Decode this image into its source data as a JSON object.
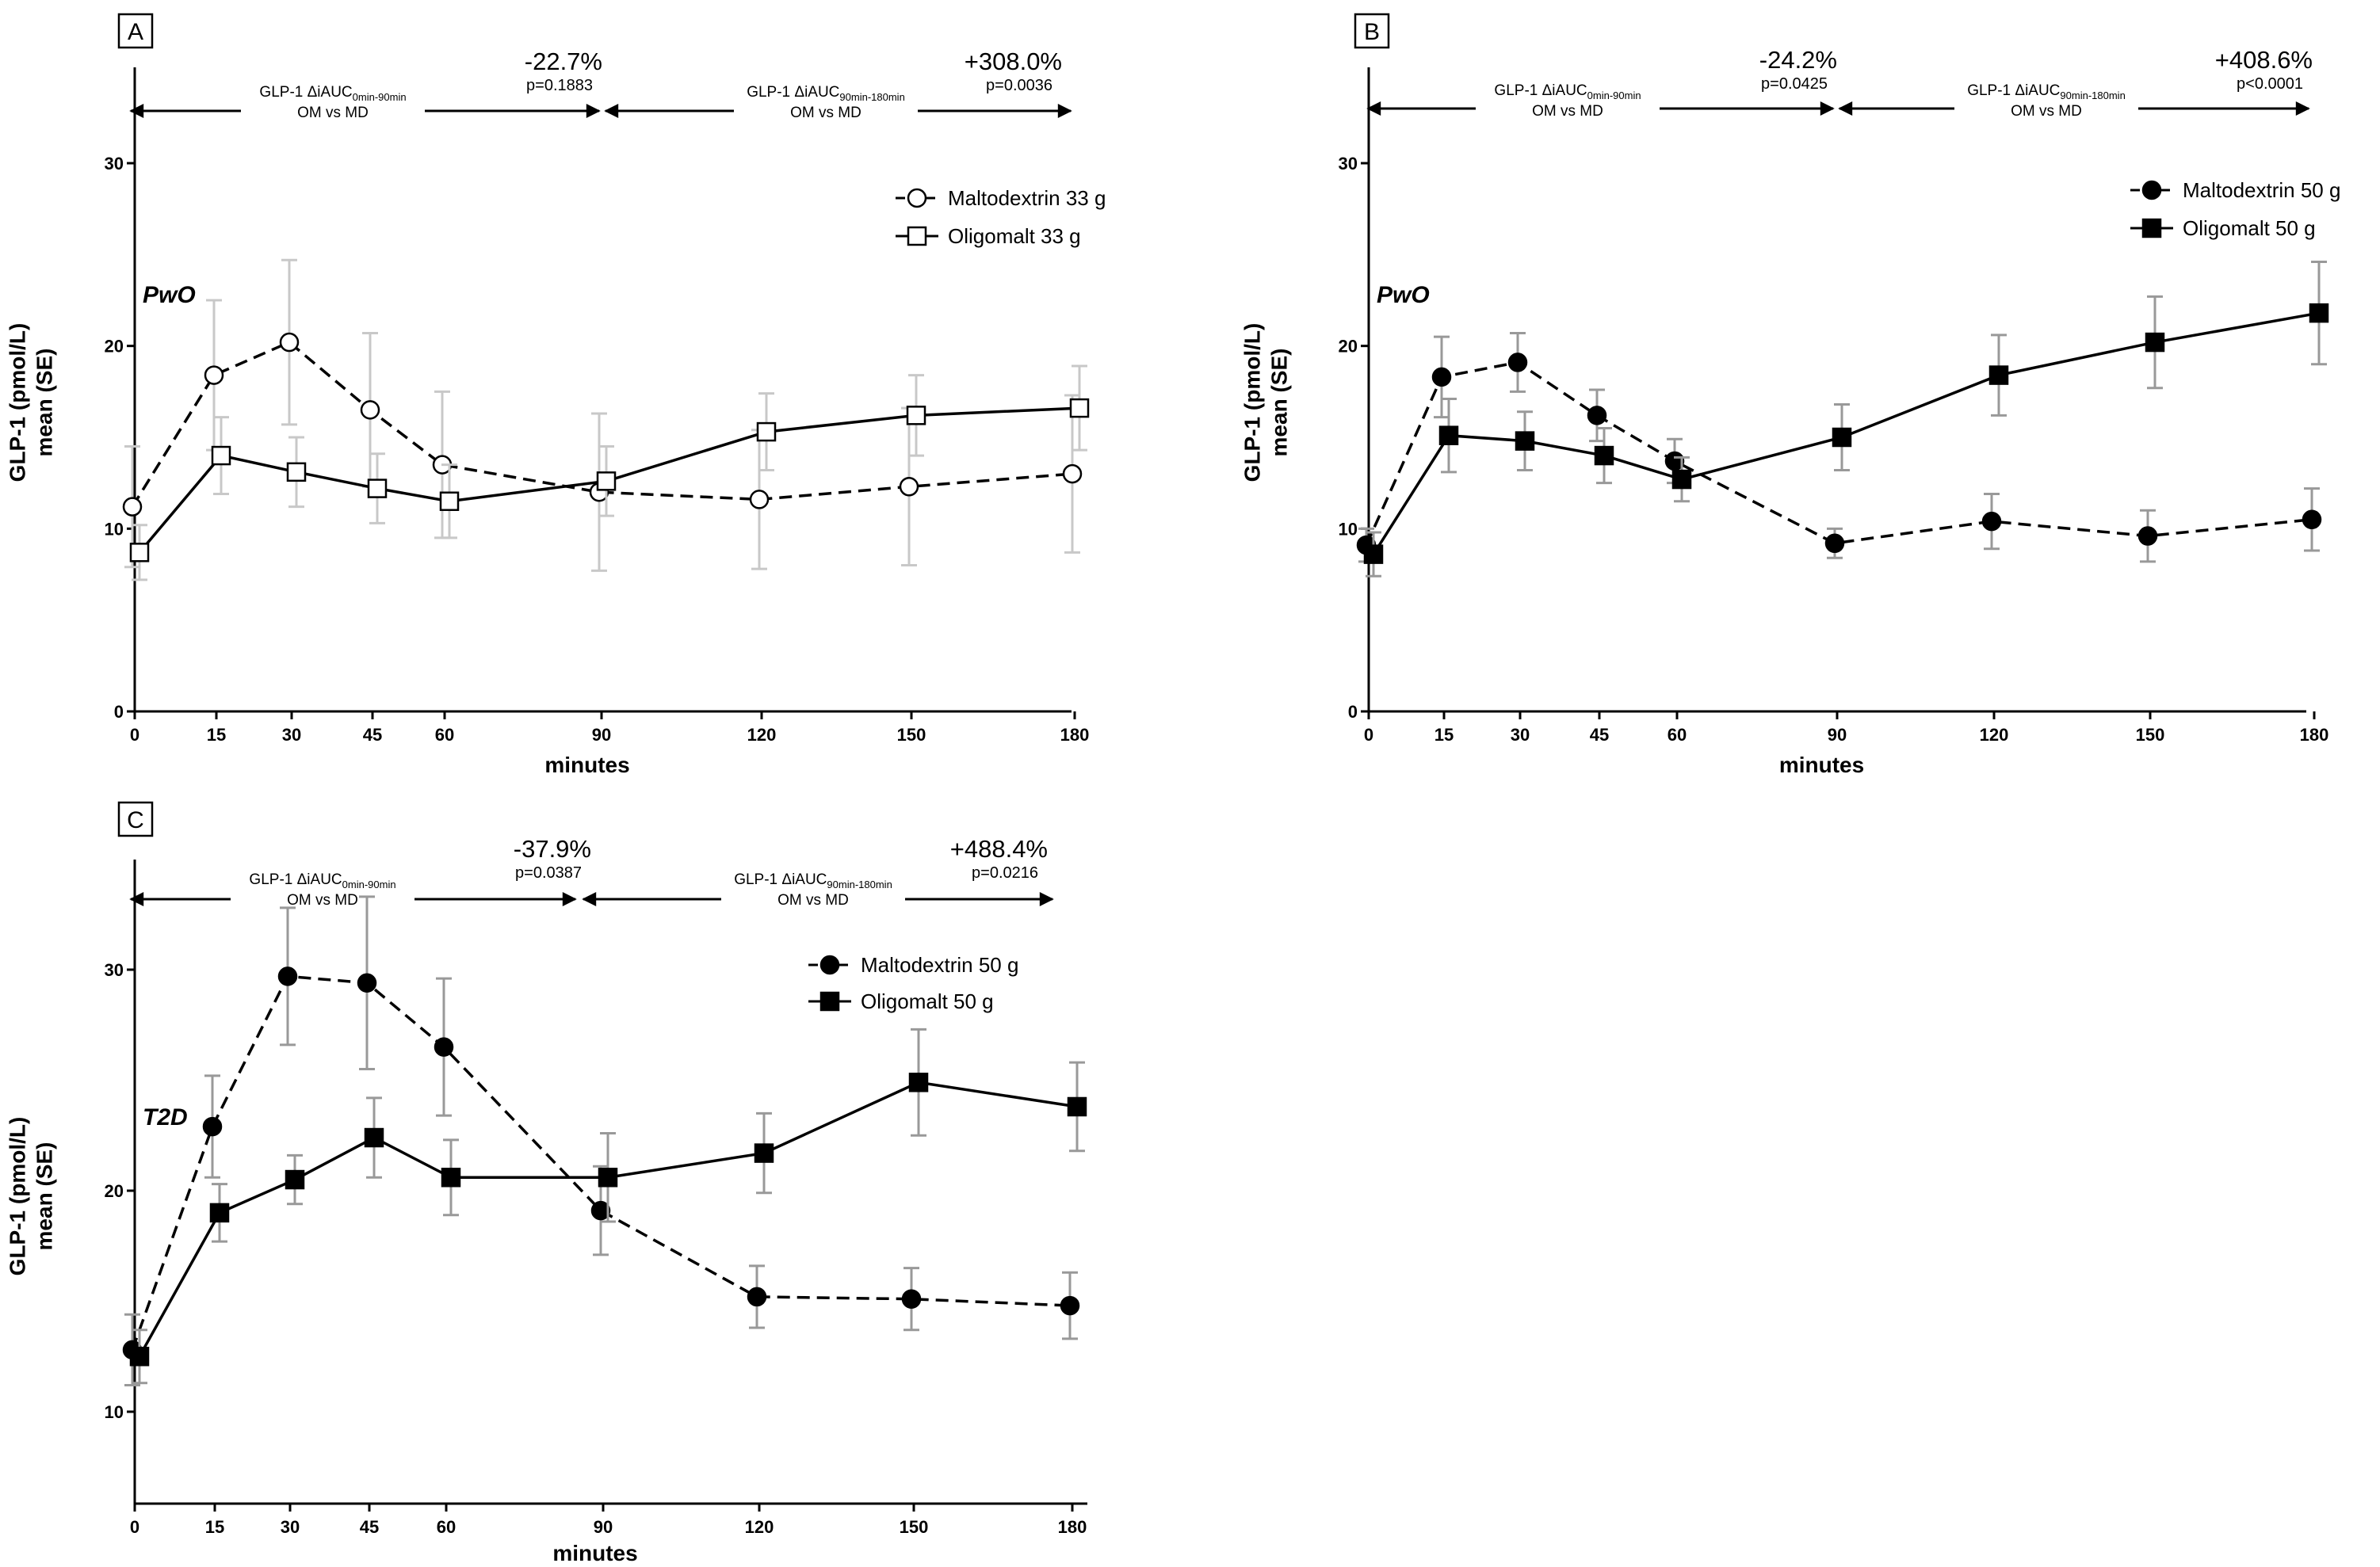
{
  "chart_data": [
    {
      "type": "line",
      "panel": "A",
      "group": "PwO",
      "xlabel": "minutes",
      "ylabel": [
        "GLP-1 (pmol/L)",
        "mean (SE)"
      ],
      "x_ticks": [
        0,
        15,
        30,
        45,
        60,
        90,
        120,
        150,
        180
      ],
      "y_ticks": [
        0,
        10,
        20,
        30
      ],
      "ylim": [
        0,
        35
      ],
      "legend_position": "top-right",
      "marker_fill": "open",
      "series": [
        {
          "name": "Maltodextrin 33 g",
          "marker": "circle",
          "line": "dashed",
          "x": [
            0,
            15,
            30,
            45,
            60,
            90,
            120,
            150,
            180
          ],
          "values": [
            11.2,
            18.4,
            20.2,
            16.5,
            13.5,
            12.0,
            11.6,
            12.3,
            13.0
          ],
          "errors": [
            3.3,
            4.1,
            4.5,
            4.2,
            4.0,
            4.3,
            3.8,
            4.3,
            4.3
          ]
        },
        {
          "name": "Oligomalt 33 g",
          "marker": "square",
          "line": "solid",
          "x": [
            0,
            15,
            30,
            45,
            60,
            90,
            120,
            150,
            180
          ],
          "values": [
            8.7,
            14.0,
            13.1,
            12.2,
            11.5,
            12.6,
            15.3,
            16.2,
            16.6
          ],
          "errors": [
            1.5,
            2.1,
            1.9,
            1.9,
            2.0,
            1.9,
            2.1,
            2.2,
            2.3
          ]
        }
      ],
      "annotations": {
        "range1": {
          "label": "GLP-1 ΔiAUC",
          "sub": "0min-90min",
          "line2": "OM vs MD",
          "pct": "-22.7%",
          "p": "p=0.1883"
        },
        "range2": {
          "label": "GLP-1 ΔiAUC",
          "sub": "90min-180min",
          "line2": "OM vs MD",
          "pct": "+308.0%",
          "p": "p=0.0036"
        }
      }
    },
    {
      "type": "line",
      "panel": "B",
      "group": "PwO",
      "xlabel": "minutes",
      "ylabel": [
        "GLP-1 (pmol/L)",
        "mean (SE)"
      ],
      "x_ticks": [
        0,
        15,
        30,
        45,
        60,
        90,
        120,
        150,
        180
      ],
      "y_ticks": [
        0,
        10,
        20,
        30
      ],
      "ylim": [
        0,
        35
      ],
      "legend_position": "top-right",
      "marker_fill": "filled",
      "series": [
        {
          "name": "Maltodextrin 50 g",
          "marker": "circle",
          "line": "dashed",
          "x": [
            0,
            15,
            30,
            45,
            60,
            90,
            120,
            150,
            180
          ],
          "values": [
            9.1,
            18.3,
            19.1,
            16.2,
            13.7,
            9.2,
            10.4,
            9.6,
            10.5
          ],
          "errors": [
            0.9,
            2.2,
            1.6,
            1.4,
            1.2,
            0.8,
            1.5,
            1.4,
            1.7
          ]
        },
        {
          "name": "Oligomalt 50 g",
          "marker": "square",
          "line": "solid",
          "x": [
            0,
            15,
            30,
            45,
            60,
            90,
            120,
            150,
            180
          ],
          "values": [
            8.6,
            15.1,
            14.8,
            14.0,
            12.7,
            15.0,
            18.4,
            20.2,
            21.8
          ],
          "errors": [
            1.2,
            2.0,
            1.6,
            1.5,
            1.2,
            1.8,
            2.2,
            2.5,
            2.8
          ]
        }
      ],
      "annotations": {
        "range1": {
          "label": "GLP-1 ΔiAUC",
          "sub": "0min-90min",
          "line2": "OM vs MD",
          "pct": "-24.2%",
          "p": "p=0.0425"
        },
        "range2": {
          "label": "GLP-1 ΔiAUC",
          "sub": "90min-180min",
          "line2": "OM vs MD",
          "pct": "+408.6%",
          "p": "p<0.0001"
        }
      }
    },
    {
      "type": "line",
      "panel": "C",
      "group": "T2D",
      "xlabel": "minutes",
      "ylabel": [
        "GLP-1 (pmol/L)",
        "mean (SE)"
      ],
      "x_ticks": [
        0,
        15,
        30,
        45,
        60,
        90,
        120,
        150,
        180
      ],
      "y_ticks": [
        10,
        20,
        30
      ],
      "ylim": [
        5,
        35
      ],
      "legend_position": "top-right",
      "marker_fill": "filled",
      "series": [
        {
          "name": "Maltodextrin 50 g",
          "marker": "circle",
          "line": "dashed",
          "x": [
            0,
            15,
            30,
            45,
            60,
            90,
            120,
            150,
            180
          ],
          "values": [
            12.8,
            22.9,
            29.7,
            29.4,
            26.5,
            19.1,
            15.2,
            15.1,
            14.8
          ],
          "errors": [
            1.6,
            2.3,
            3.1,
            3.9,
            3.1,
            2.0,
            1.4,
            1.4,
            1.5
          ]
        },
        {
          "name": "Oligomalt 50 g",
          "marker": "square",
          "line": "solid",
          "x": [
            0,
            15,
            30,
            45,
            60,
            90,
            120,
            150,
            180
          ],
          "values": [
            12.5,
            19.0,
            20.5,
            22.4,
            20.6,
            20.6,
            21.7,
            24.9,
            23.8
          ],
          "errors": [
            1.2,
            1.3,
            1.1,
            1.8,
            1.7,
            2.0,
            1.8,
            2.4,
            2.0
          ]
        }
      ],
      "annotations": {
        "range1": {
          "label": "GLP-1 ΔiAUC",
          "sub": "0min-90min",
          "line2": "OM vs MD",
          "pct": "-37.9%",
          "p": "p=0.0387"
        },
        "range2": {
          "label": "GLP-1 ΔiAUC",
          "sub": "90min-180min",
          "line2": "OM vs MD",
          "pct": "+488.4%",
          "p": "p=0.0216"
        }
      }
    }
  ]
}
